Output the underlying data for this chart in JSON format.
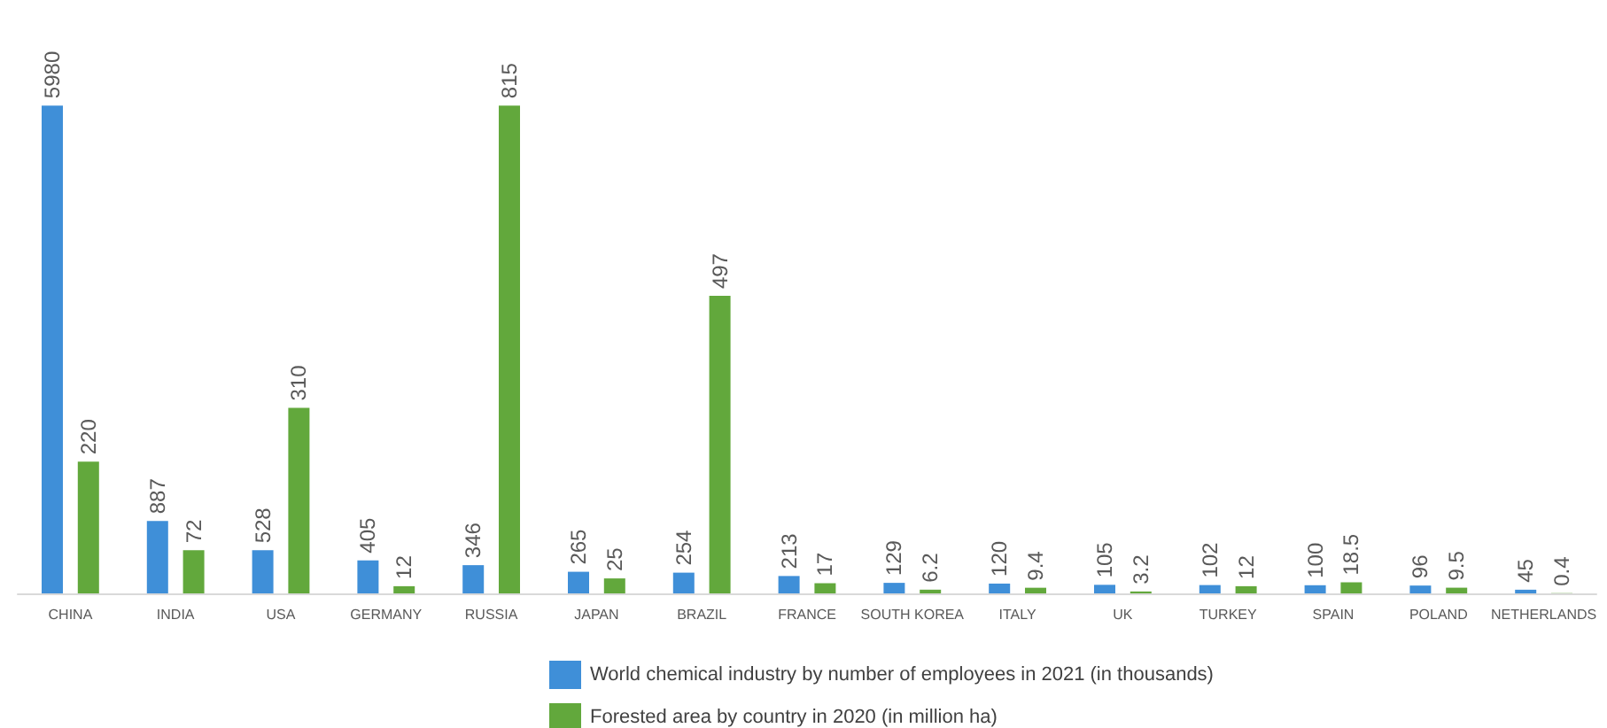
{
  "chart_data": {
    "type": "bar",
    "categories": [
      "CHINA",
      "INDIA",
      "USA",
      "GERMANY",
      "RUSSIA",
      "JAPAN",
      "BRAZIL",
      "FRANCE",
      "SOUTH KOREA",
      "ITALY",
      "UK",
      "TURKEY",
      "SPAIN",
      "POLAND",
      "NETHERLANDS"
    ],
    "series": [
      {
        "name": "World chemical industry by number of employees in 2021 (in thousands)",
        "color": "#3f8fd8",
        "values": [
          5980,
          887,
          528,
          405,
          346,
          265,
          254,
          213,
          129,
          120,
          105,
          102,
          100,
          96,
          45
        ]
      },
      {
        "name": "Forested area by country in 2020 (in million ha)",
        "color": "#62a83c",
        "axis": "y2",
        "values": [
          220,
          72,
          310,
          12,
          815,
          25,
          497,
          17,
          6.2,
          9.4,
          3.2,
          12,
          18.5,
          9.5,
          0.4
        ]
      }
    ],
    "tick_labels": "x",
    "grid": false,
    "legend": "bottom",
    "data_labels": true
  }
}
